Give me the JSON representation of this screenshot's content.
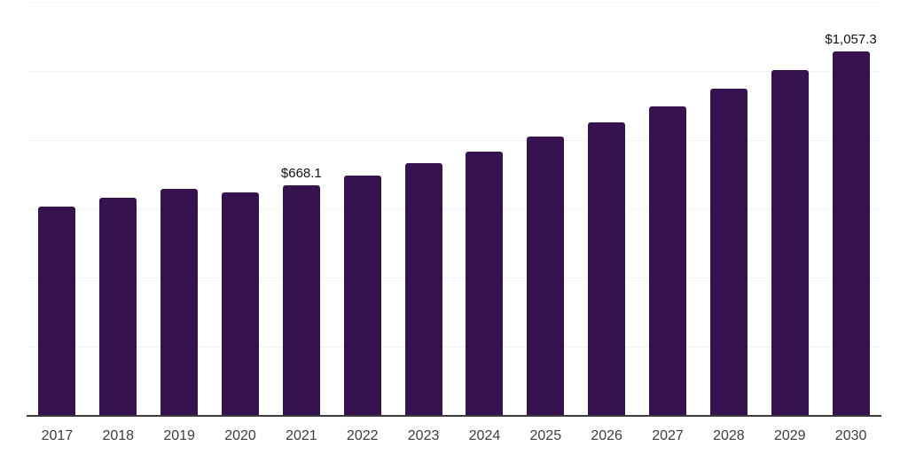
{
  "chart_data": {
    "type": "bar",
    "categories": [
      "2017",
      "2018",
      "2019",
      "2020",
      "2021",
      "2022",
      "2023",
      "2024",
      "2025",
      "2026",
      "2027",
      "2028",
      "2029",
      "2030"
    ],
    "values": [
      607.6,
      633.2,
      659.0,
      648.7,
      668.1,
      697.6,
      732.0,
      767.0,
      808.2,
      850.4,
      895.7,
      948.2,
      1002.2,
      1057.3
    ],
    "value_labels": {
      "2021": "$668.1",
      "2030": "$1,057.3"
    },
    "ylim": [
      0,
      1200
    ],
    "gridline_step": 200,
    "grid": true,
    "legend": "none",
    "colors": {
      "bar": "#36124E",
      "gridline": "#F4F4F4",
      "axis": "#3C3C3C",
      "tick_label": "#3D3D3D",
      "value_label": "#111111",
      "background": "#FFFFFF"
    }
  }
}
